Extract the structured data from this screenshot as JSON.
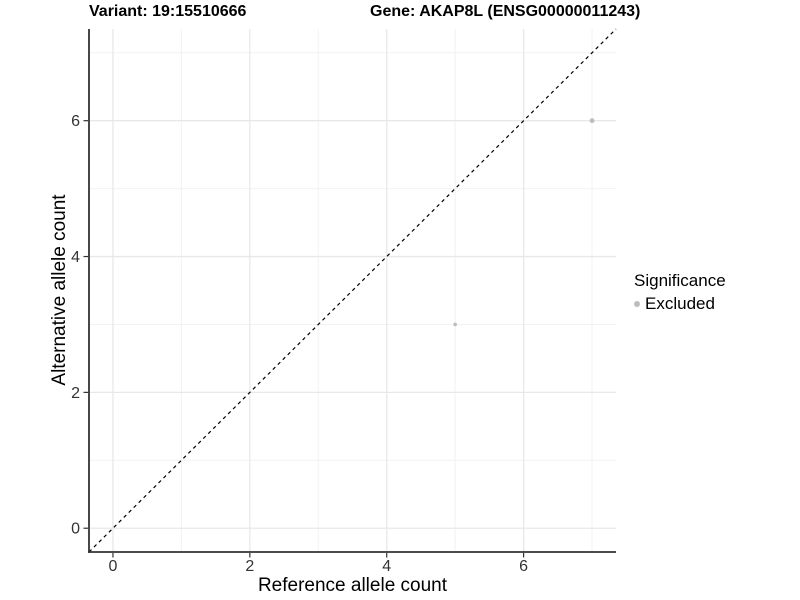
{
  "titles": {
    "variant": "Variant: 19:15510666",
    "gene": "Gene: AKAP8L (ENSG00000011243)"
  },
  "legend": {
    "title": "Significance",
    "items": [
      {
        "label": "Excluded",
        "color": "#bdbdbd",
        "marker": "dot-icon"
      }
    ]
  },
  "chart_data": {
    "type": "scatter",
    "title": "",
    "xlabel": "Reference allele count",
    "ylabel": "Alternative allele count",
    "xlim": [
      -0.35,
      7.35
    ],
    "ylim": [
      -0.35,
      7.35
    ],
    "x_ticks": [
      0,
      2,
      4,
      6
    ],
    "y_ticks": [
      0,
      2,
      4,
      6
    ],
    "x_minor_ticks": [
      1,
      3,
      5,
      7
    ],
    "y_minor_ticks": [
      1,
      3,
      5,
      7
    ],
    "grid": true,
    "legend_position": "right",
    "points": [
      {
        "x": 5,
        "y": 3,
        "significance": "Excluded",
        "radius_px": 1.8
      },
      {
        "x": 7,
        "y": 6,
        "significance": "Excluded",
        "radius_px": 2.4
      }
    ],
    "reference_line": {
      "type": "identity",
      "style": "dashed",
      "color": "#000000",
      "from": [
        -0.35,
        -0.35
      ],
      "to": [
        7.35,
        7.35
      ]
    },
    "colors": {
      "excluded_point": "#bdbdbd",
      "grid_major": "#e8e8e8",
      "grid_minor": "#f2f2f2",
      "axis_line": "#333333",
      "tick_text": "#333333"
    }
  }
}
